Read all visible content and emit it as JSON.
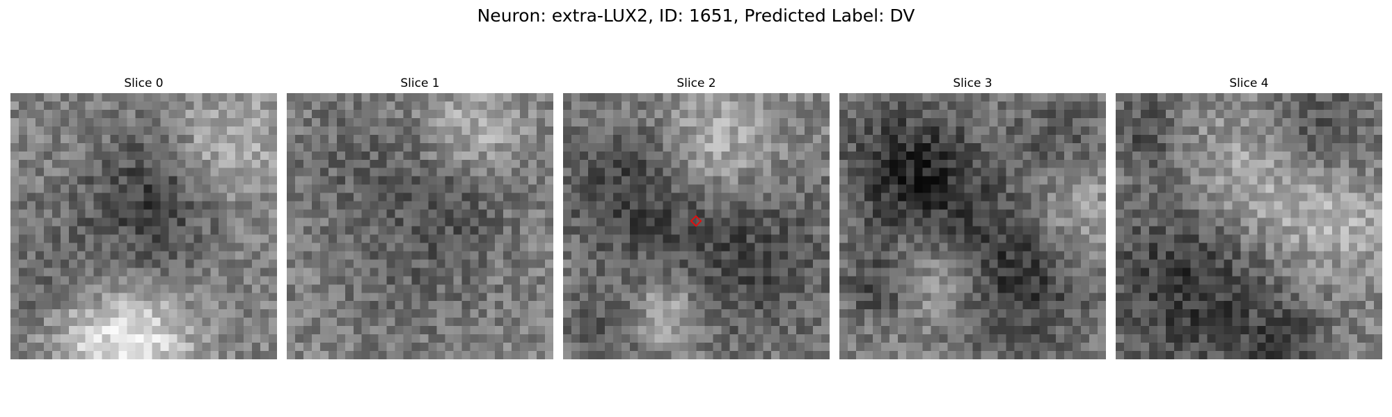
{
  "figure": {
    "title": "Neuron: extra-LUX2, ID: 1651, Predicted Label: DV",
    "marker_color": "#e01010",
    "panels": [
      {
        "label": "Slice 0",
        "seed": 11,
        "has_marker": false
      },
      {
        "label": "Slice 1",
        "seed": 23,
        "has_marker": false
      },
      {
        "label": "Slice 2",
        "seed": 37,
        "has_marker": true
      },
      {
        "label": "Slice 3",
        "seed": 51,
        "has_marker": false
      },
      {
        "label": "Slice 4",
        "seed": 67,
        "has_marker": false
      }
    ]
  }
}
